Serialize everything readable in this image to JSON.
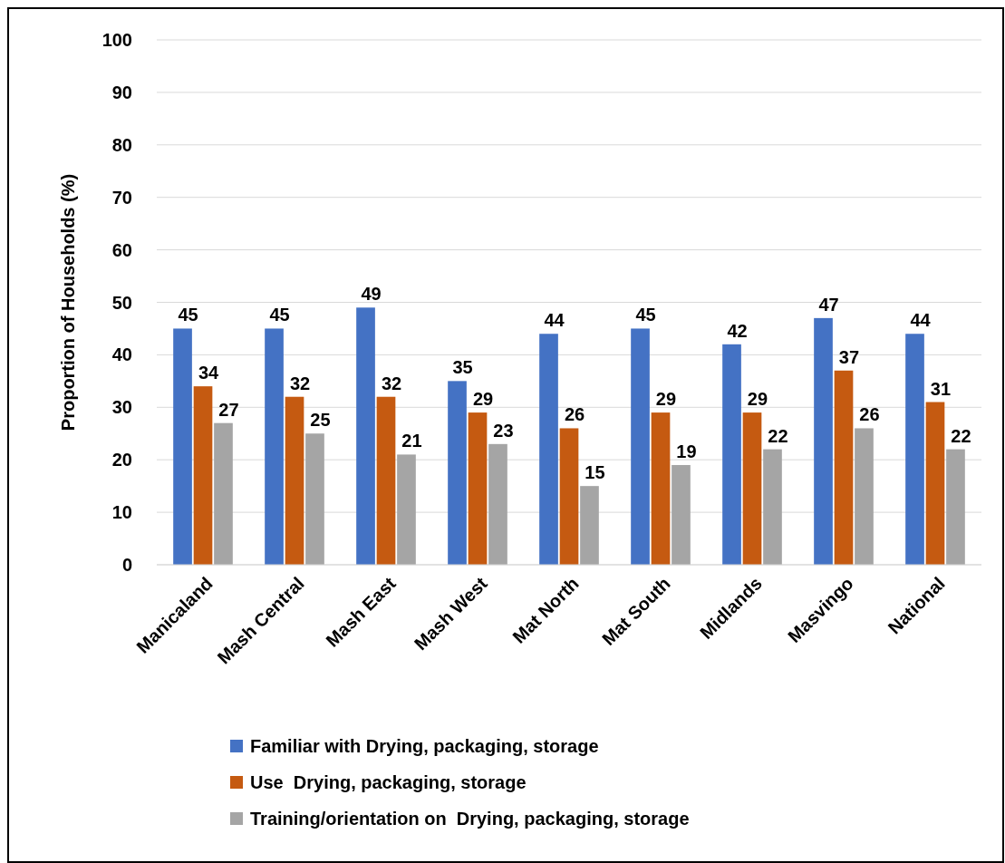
{
  "chart_data": {
    "type": "bar",
    "ylabel": "Proportion of Households (%)",
    "categories": [
      "Manicaland",
      "Mash Central",
      "Mash East",
      "Mash West",
      "Mat North",
      "Mat South",
      "Midlands",
      "Masvingo",
      "National"
    ],
    "series": [
      {
        "name": "Familiar with Drying, packaging, storage",
        "color": "#4472c4",
        "values": [
          45,
          45,
          49,
          35,
          44,
          45,
          42,
          47,
          44
        ]
      },
      {
        "name": "Use  Drying, packaging, storage",
        "color": "#c55a11",
        "values": [
          34,
          32,
          32,
          29,
          26,
          29,
          29,
          37,
          31
        ]
      },
      {
        "name": "Training/orientation on  Drying, packaging, storage",
        "color": "#a5a5a5",
        "values": [
          27,
          25,
          21,
          23,
          15,
          19,
          22,
          26,
          22
        ]
      }
    ],
    "ylim": [
      0,
      100
    ],
    "yticks": [
      0,
      10,
      20,
      30,
      40,
      50,
      60,
      70,
      80,
      90,
      100
    ],
    "grid": "y",
    "legend": "bottom",
    "data_labels": true
  }
}
